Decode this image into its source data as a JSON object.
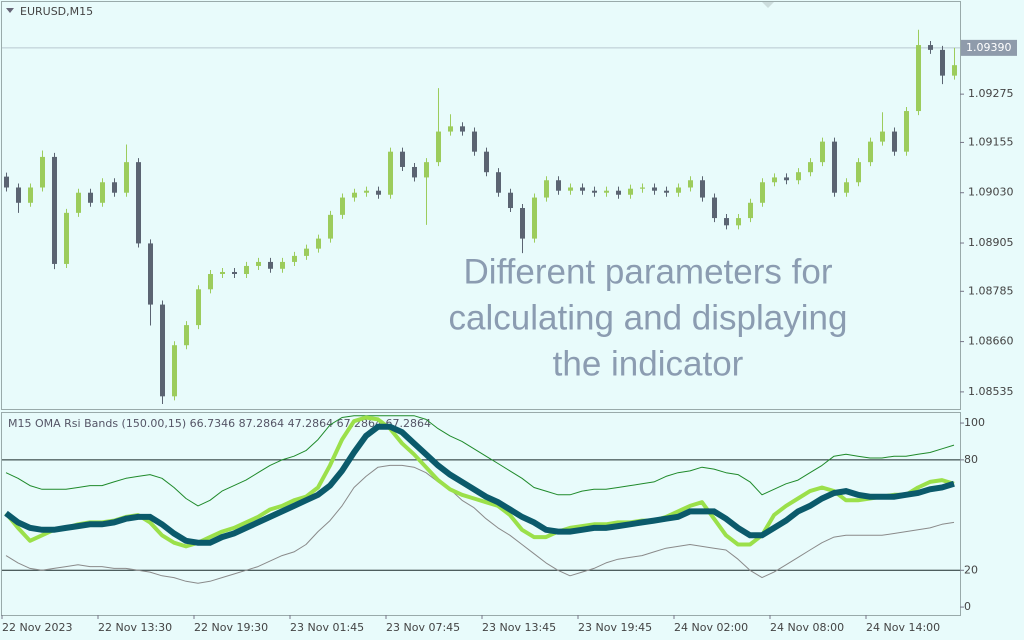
{
  "chart_data": [
    {
      "type": "candlestick",
      "title": "EURUSD,M15",
      "annotation": [
        "Different parameters for",
        "calculating and displaying",
        "the indicator"
      ],
      "xtick_labels": [
        "22 Nov 2023",
        "22 Nov 13:30",
        "22 Nov 19:30",
        "23 Nov 01:45",
        "23 Nov 07:45",
        "23 Nov 13:45",
        "23 Nov 19:45",
        "24 Nov 02:00",
        "24 Nov 08:00",
        "24 Nov 14:00"
      ],
      "up_color": "#9ccc5c",
      "down_color": "#5b6472",
      "ylim": [
        1.0849,
        1.09504
      ],
      "yticks": [
        {
          "value": 1.09275,
          "label": "1.09275"
        },
        {
          "value": 1.09155,
          "label": "1.09155"
        },
        {
          "value": 1.0903,
          "label": "1.09030"
        },
        {
          "value": 1.08905,
          "label": "1.08905"
        },
        {
          "value": 1.08785,
          "label": "1.08785"
        },
        {
          "value": 1.0866,
          "label": "1.08660"
        },
        {
          "value": 1.08535,
          "label": "1.08535"
        }
      ],
      "last_price": {
        "value": 1.0939,
        "label": "1.09390"
      },
      "open": [
        1.0907,
        1.09043,
        1.09005,
        1.09043,
        1.09119,
        1.08853,
        1.0898,
        1.0903,
        1.09005,
        1.09056,
        1.0903,
        1.09106,
        1.08904,
        1.08752,
        1.08524,
        1.08651,
        1.08701,
        1.0879,
        1.08828,
        1.08833,
        1.08828,
        1.08848,
        1.08858,
        1.08841,
        1.08858,
        1.08873,
        1.08891,
        1.08916,
        1.08975,
        1.09018,
        1.0903,
        1.09035,
        1.09025,
        1.09132,
        1.09094,
        1.09068,
        1.09106,
        1.09182,
        1.09195,
        1.09182,
        1.09132,
        1.09081,
        1.0903,
        1.08992,
        1.08916,
        1.09018,
        1.09061,
        1.09035,
        1.09043,
        1.09035,
        1.0903,
        1.09035,
        1.09025,
        1.0904,
        1.09043,
        1.09035,
        1.0903,
        1.09043,
        1.09061,
        1.09018,
        1.08967,
        1.08949,
        1.08967,
        1.09005,
        1.09056,
        1.09068,
        1.09061,
        1.09081,
        1.09106,
        1.09157,
        1.0903,
        1.09056,
        1.09106,
        1.09157,
        1.09182,
        1.09132,
        1.09233,
        1.09397,
        1.09385,
        1.09321
      ],
      "high": [
        1.0908,
        1.09053,
        1.09053,
        1.09135,
        1.09129,
        1.0899,
        1.0904,
        1.0904,
        1.09066,
        1.09066,
        1.0915,
        1.09116,
        1.08914,
        1.08762,
        1.08661,
        1.08711,
        1.088,
        1.08838,
        1.08843,
        1.08843,
        1.08858,
        1.08868,
        1.08868,
        1.08868,
        1.08883,
        1.08901,
        1.08926,
        1.08985,
        1.09028,
        1.0904,
        1.09045,
        1.09045,
        1.09142,
        1.09142,
        1.09104,
        1.09116,
        1.0929,
        1.09225,
        1.09205,
        1.09192,
        1.09142,
        1.09091,
        1.0904,
        1.09002,
        1.09028,
        1.09071,
        1.09071,
        1.09053,
        1.09053,
        1.09045,
        1.09045,
        1.09045,
        1.0905,
        1.09053,
        1.09053,
        1.09045,
        1.09053,
        1.09071,
        1.09071,
        1.09028,
        1.08977,
        1.08977,
        1.09015,
        1.09066,
        1.09078,
        1.09078,
        1.09091,
        1.09116,
        1.09167,
        1.09167,
        1.09066,
        1.09116,
        1.09167,
        1.0923,
        1.09192,
        1.09243,
        1.09435,
        1.09407,
        1.09395,
        1.0939
      ],
      "low": [
        1.09033,
        1.0898,
        1.08995,
        1.09033,
        1.0884,
        1.08843,
        1.0897,
        1.08995,
        1.08995,
        1.0902,
        1.0902,
        1.08894,
        1.087,
        1.08505,
        1.08514,
        1.08641,
        1.08691,
        1.0878,
        1.08818,
        1.08818,
        1.08818,
        1.08838,
        1.08831,
        1.08831,
        1.08848,
        1.08863,
        1.08881,
        1.08906,
        1.08965,
        1.09008,
        1.0902,
        1.09015,
        1.09015,
        1.09084,
        1.09058,
        1.0895,
        1.09096,
        1.09172,
        1.09172,
        1.09122,
        1.09071,
        1.0902,
        1.08982,
        1.0888,
        1.08906,
        1.09008,
        1.09025,
        1.09025,
        1.09025,
        1.0902,
        1.0902,
        1.09015,
        1.09015,
        1.0903,
        1.09025,
        1.0902,
        1.0902,
        1.09033,
        1.09008,
        1.08957,
        1.08939,
        1.08939,
        1.08957,
        1.08995,
        1.09046,
        1.09051,
        1.09051,
        1.09071,
        1.09096,
        1.0902,
        1.0902,
        1.09046,
        1.09096,
        1.09147,
        1.09122,
        1.09122,
        1.09223,
        1.09375,
        1.093,
        1.09311
      ],
      "close": [
        1.09043,
        1.09005,
        1.09043,
        1.09119,
        1.08853,
        1.0898,
        1.0903,
        1.09005,
        1.09056,
        1.0903,
        1.09106,
        1.08904,
        1.08752,
        1.08524,
        1.08651,
        1.08701,
        1.0879,
        1.08828,
        1.08833,
        1.08828,
        1.08848,
        1.08858,
        1.08841,
        1.08858,
        1.08873,
        1.08891,
        1.08916,
        1.08975,
        1.09018,
        1.0903,
        1.09035,
        1.09025,
        1.09132,
        1.09094,
        1.09068,
        1.09106,
        1.09182,
        1.09195,
        1.09182,
        1.09132,
        1.09081,
        1.0903,
        1.08992,
        1.08916,
        1.09018,
        1.09061,
        1.09035,
        1.09043,
        1.09035,
        1.0903,
        1.09035,
        1.09025,
        1.0904,
        1.09043,
        1.09035,
        1.0903,
        1.09043,
        1.09061,
        1.09018,
        1.08967,
        1.08949,
        1.08967,
        1.09005,
        1.09056,
        1.09068,
        1.09061,
        1.09081,
        1.09106,
        1.09157,
        1.0903,
        1.09056,
        1.09106,
        1.09157,
        1.09182,
        1.09132,
        1.09233,
        1.09397,
        1.09385,
        1.09321,
        1.09347
      ]
    },
    {
      "type": "line",
      "title": "M15 OMA Rsi Bands (150.00,15) 66.7346 87.2864 47.2864 67.2864 67.2864",
      "ylim": [
        -4.3,
        106
      ],
      "yticks": [
        0,
        20,
        80,
        100
      ],
      "levels": [
        20,
        80
      ],
      "series": [
        {
          "color": "#1f8a2a",
          "values": [
            73,
            70,
            66,
            64,
            64,
            64,
            65,
            66,
            66,
            68,
            70,
            71,
            72,
            70,
            65,
            59,
            55,
            58,
            63,
            66,
            69,
            73,
            77,
            80,
            82,
            85,
            91,
            99,
            103,
            104,
            104,
            104,
            104,
            104,
            104,
            102,
            97,
            93,
            90,
            86,
            82,
            78,
            74,
            70,
            65,
            63,
            61,
            61,
            63,
            64,
            64,
            65,
            66,
            67,
            68,
            71,
            73,
            74,
            76,
            75,
            73,
            72,
            68,
            61,
            64,
            67,
            69,
            73,
            77,
            82,
            83,
            82,
            81,
            81,
            82,
            82,
            83,
            84,
            86,
            88
          ]
        },
        {
          "color": "#8a8a8a",
          "values": [
            28,
            24,
            21,
            20,
            21,
            22,
            23,
            22,
            22,
            21,
            21,
            20,
            19,
            17,
            16,
            14,
            13,
            14,
            16,
            18,
            20,
            22,
            25,
            28,
            30,
            34,
            41,
            47,
            55,
            65,
            71,
            76,
            77,
            77,
            76,
            73,
            68,
            64,
            58,
            54,
            48,
            43,
            39,
            34,
            29,
            24,
            20,
            17,
            19,
            21,
            24,
            26,
            27,
            28,
            30,
            32,
            33,
            34,
            33,
            32,
            31,
            26,
            20,
            16,
            19,
            23,
            27,
            31,
            35,
            38,
            39,
            39,
            39,
            39,
            40,
            41,
            42,
            43,
            45,
            46
          ]
        },
        {
          "color": "#9be04a",
          "values": [
            51,
            43,
            36,
            39,
            42,
            43,
            45,
            46,
            46,
            47,
            49,
            50,
            46,
            39,
            35,
            33,
            35,
            38,
            41,
            43,
            46,
            49,
            53,
            55,
            58,
            60,
            65,
            77,
            91,
            101,
            103,
            102,
            97,
            89,
            83,
            76,
            69,
            64,
            61,
            59,
            57,
            55,
            50,
            42,
            38,
            38,
            41,
            43,
            44,
            45,
            45,
            46,
            46,
            47,
            47,
            49,
            52,
            55,
            57,
            48,
            39,
            34,
            34,
            39,
            50,
            55,
            59,
            63,
            65,
            63,
            58,
            58,
            59,
            60,
            61,
            61,
            65,
            68,
            69,
            67
          ]
        },
        {
          "color": "#0b5a6b",
          "values": [
            51,
            46,
            43,
            42,
            42,
            43,
            44,
            45,
            45,
            46,
            48,
            49,
            49,
            45,
            40,
            36,
            35,
            35,
            38,
            40,
            43,
            46,
            49,
            52,
            55,
            58,
            61,
            66,
            74,
            84,
            93,
            98,
            98,
            95,
            89,
            83,
            77,
            72,
            68,
            64,
            60,
            57,
            53,
            49,
            46,
            42,
            41,
            41,
            42,
            43,
            43,
            44,
            45,
            46,
            47,
            48,
            49,
            52,
            52,
            52,
            48,
            43,
            39,
            39,
            43,
            47,
            52,
            55,
            59,
            62,
            63,
            61,
            60,
            60,
            60,
            61,
            62,
            64,
            65,
            67
          ]
        }
      ]
    }
  ]
}
